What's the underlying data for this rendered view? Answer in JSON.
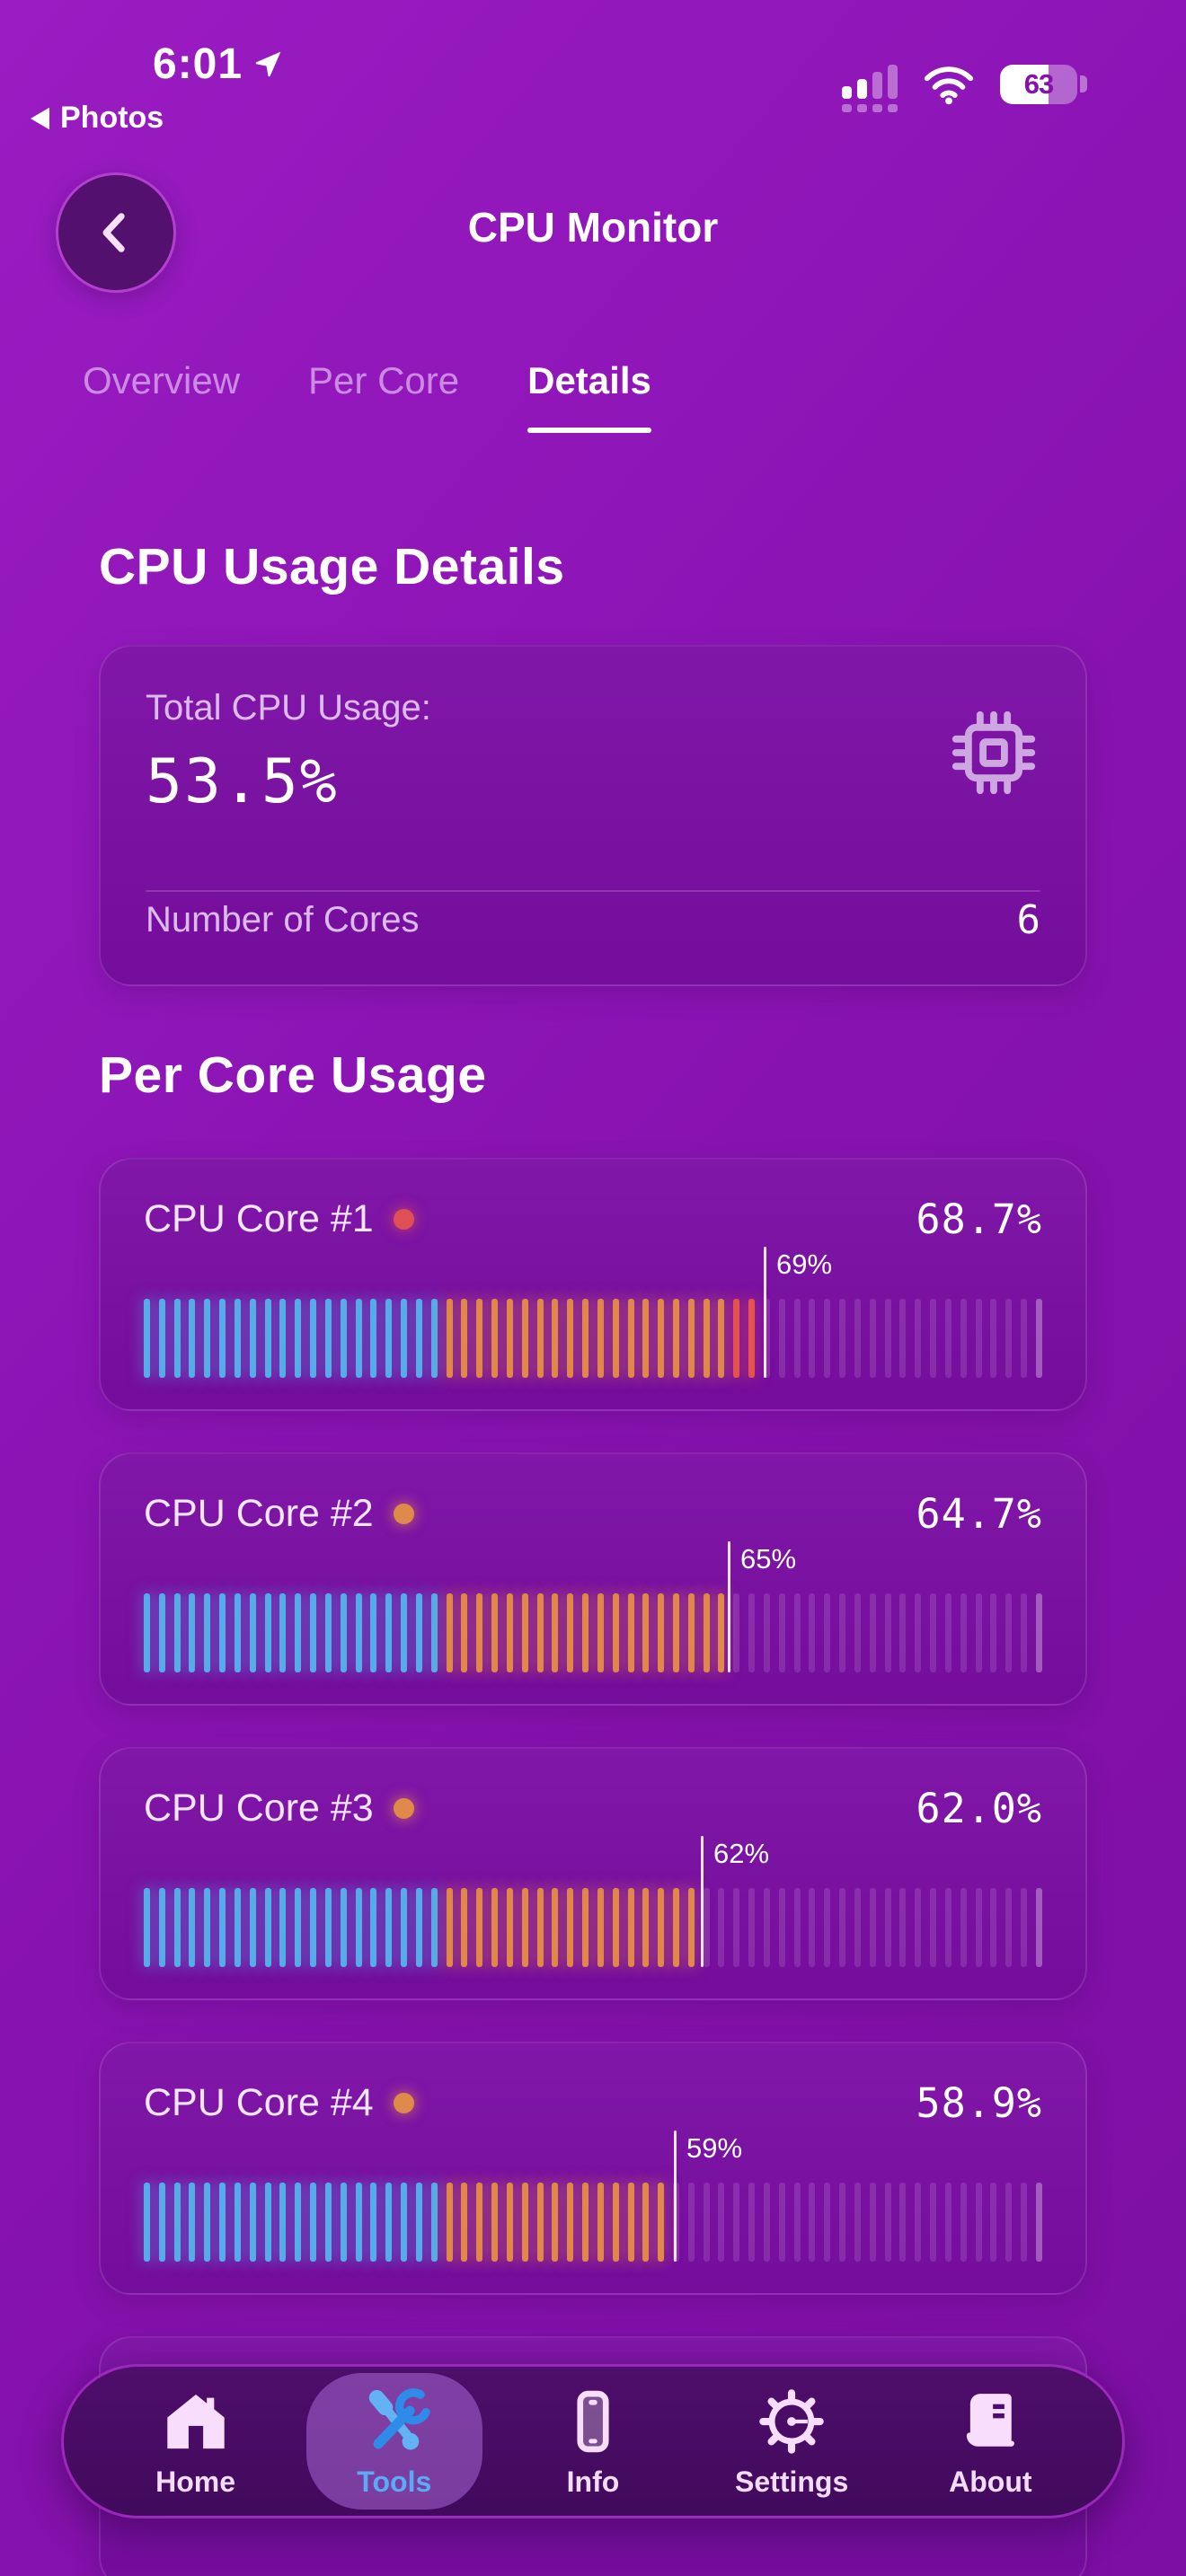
{
  "status_bar": {
    "time": "6:01",
    "back_app_label": "Photos",
    "battery_level": "63",
    "battery_pct": 63,
    "signal_bars_total": 4,
    "signal_bars_active": 2
  },
  "header": {
    "title": "CPU Monitor"
  },
  "tabs": [
    {
      "label": "Overview",
      "active": false
    },
    {
      "label": "Per Core",
      "active": false
    },
    {
      "label": "Details",
      "active": true
    }
  ],
  "details_section": {
    "heading": "CPU Usage Details",
    "total_label": "Total CPU Usage:",
    "total_value": "53.5%",
    "cores_label": "Number of Cores",
    "cores_value": "6"
  },
  "per_core_section": {
    "heading": "Per Core Usage",
    "cores": [
      {
        "name": "CPU Core #1",
        "usage": "68.7%",
        "usage_pct": 68.7,
        "status_color": "#dd5055",
        "marker_label": "69%",
        "marker_pct": 69
      },
      {
        "name": "CPU Core #2",
        "usage": "64.7%",
        "usage_pct": 64.7,
        "status_color": "#df8a4b",
        "marker_label": "65%",
        "marker_pct": 65
      },
      {
        "name": "CPU Core #3",
        "usage": "62.0%",
        "usage_pct": 62.0,
        "status_color": "#df8a4b",
        "marker_label": "62%",
        "marker_pct": 62
      },
      {
        "name": "CPU Core #4",
        "usage": "58.9%",
        "usage_pct": 58.9,
        "status_color": "#df8a4b",
        "marker_label": "59%",
        "marker_pct": 59
      }
    ],
    "partial_fifth_card_visible": true,
    "bar": {
      "total_ticks": 60,
      "blue_below_pct": 33,
      "orange_below_pct": 64.6,
      "tick_blue": "#57ace8",
      "tick_orange": "#e0894b",
      "tick_red": "#e4534e",
      "tick_dim": "rgba(255,255,255,0.13)",
      "tick_end": "rgba(255,255,255,0.32)"
    }
  },
  "nav": {
    "items": [
      {
        "label": "Home",
        "active": false
      },
      {
        "label": "Tools",
        "active": true
      },
      {
        "label": "Info",
        "active": false
      },
      {
        "label": "Settings",
        "active": false
      },
      {
        "label": "About",
        "active": false
      }
    ],
    "active_color": "#5aaaf5"
  },
  "colors": {
    "background": "#8a13b2",
    "card": "#7a0da4",
    "nav_bar": "#460b60",
    "nav_border": "#b731d8",
    "secondary_text": "#dcbaec",
    "accent_blue": "#57ace8",
    "accent_orange": "#e0894b",
    "accent_red": "#e4534e"
  }
}
